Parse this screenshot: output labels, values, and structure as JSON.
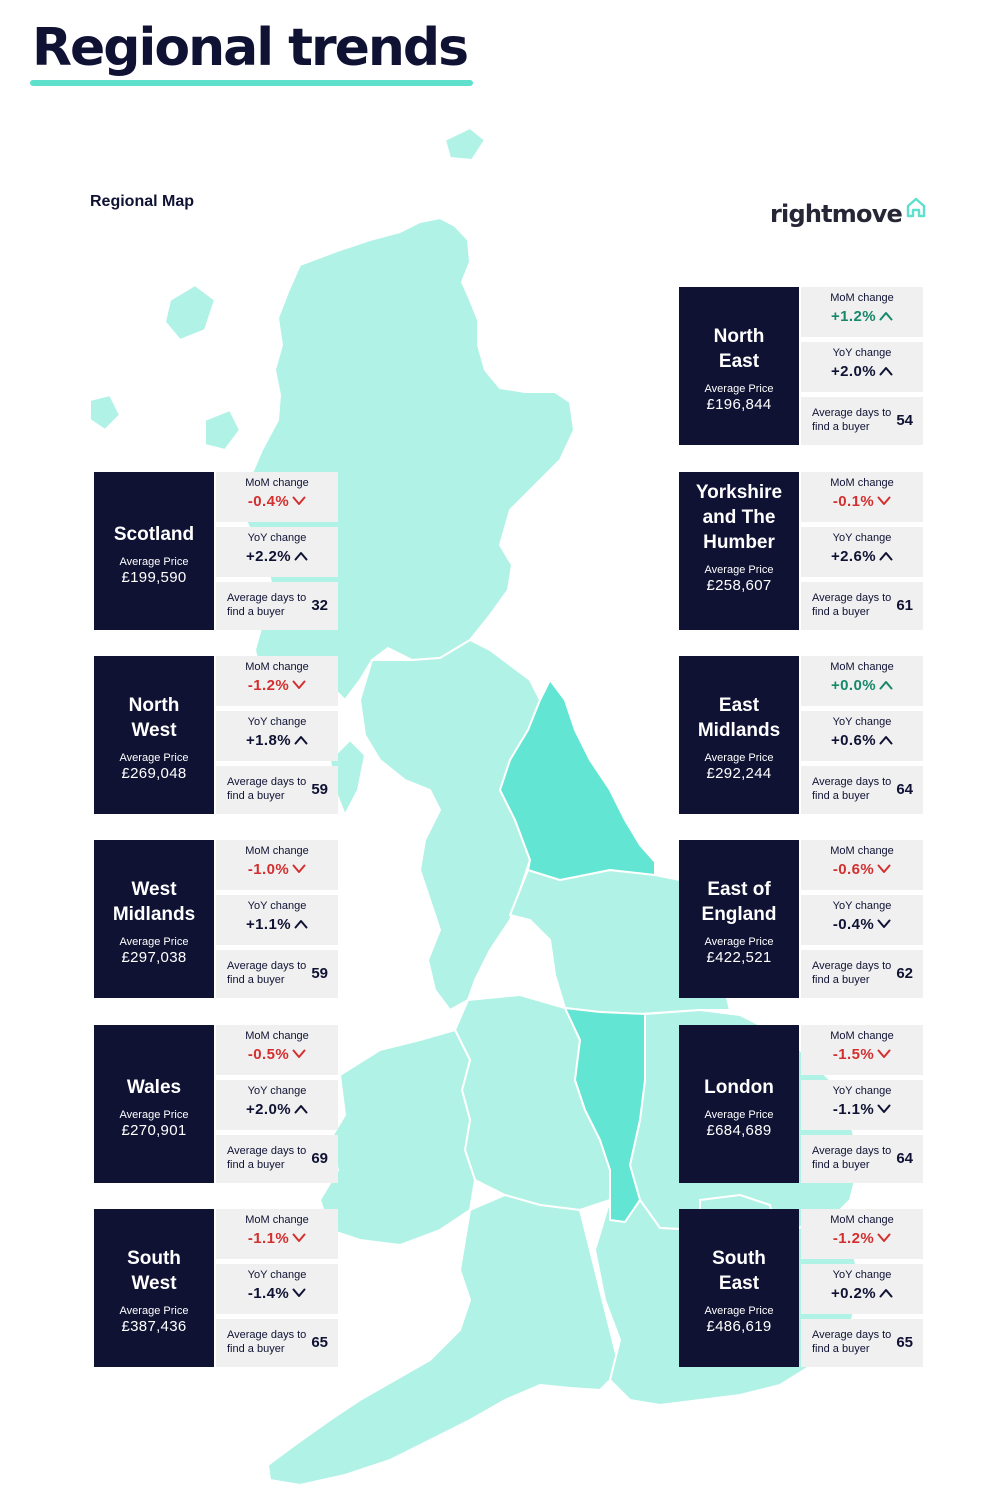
{
  "header": {
    "title": "Regional trends"
  },
  "map": {
    "label": "Regional Map"
  },
  "brand": {
    "name": "rightmove",
    "icon": "house-outline-icon",
    "accent": "#5ee0cc"
  },
  "colors": {
    "navy": "#0f1233",
    "map_land": "#b0f2e6",
    "map_highlight": "#62e5d2",
    "increase": "#17886a",
    "decrease": "#d32f2f",
    "neutral": "#0f1233"
  },
  "labels": {
    "mom": "MoM change",
    "yoy": "YoY change",
    "price": "Average Price",
    "days": "Average days to find a buyer"
  },
  "regions": [
    {
      "name": "North\nEast",
      "price": "£196,844",
      "mom": "+1.2%",
      "mom_dir": "up",
      "mom_color": "increase",
      "yoy": "+2.0%",
      "yoy_dir": "up",
      "days": "54"
    },
    {
      "name": "Scotland",
      "price": "£199,590",
      "mom": "-0.4%",
      "mom_dir": "down",
      "mom_color": "decrease",
      "yoy": "+2.2%",
      "yoy_dir": "up",
      "days": "32"
    },
    {
      "name": "Yorkshire\nand The\nHumber",
      "price": "£258,607",
      "mom": "-0.1%",
      "mom_dir": "down",
      "mom_color": "decrease",
      "yoy": "+2.6%",
      "yoy_dir": "up",
      "days": "61"
    },
    {
      "name": "North\nWest",
      "price": "£269,048",
      "mom": "-1.2%",
      "mom_dir": "down",
      "mom_color": "decrease",
      "yoy": "+1.8%",
      "yoy_dir": "up",
      "days": "59"
    },
    {
      "name": "East\nMidlands",
      "price": "£292,244",
      "mom": "+0.0%",
      "mom_dir": "up",
      "mom_color": "increase",
      "yoy": "+0.6%",
      "yoy_dir": "up",
      "days": "64"
    },
    {
      "name": "West\nMidlands",
      "price": "£297,038",
      "mom": "-1.0%",
      "mom_dir": "down",
      "mom_color": "decrease",
      "yoy": "+1.1%",
      "yoy_dir": "up",
      "days": "59"
    },
    {
      "name": "East of\nEngland",
      "price": "£422,521",
      "mom": "-0.6%",
      "mom_dir": "down",
      "mom_color": "decrease",
      "yoy": "-0.4%",
      "yoy_dir": "down",
      "days": "62"
    },
    {
      "name": "Wales",
      "price": "£270,901",
      "mom": "-0.5%",
      "mom_dir": "down",
      "mom_color": "decrease",
      "yoy": "+2.0%",
      "yoy_dir": "up",
      "days": "69"
    },
    {
      "name": "London",
      "price": "£684,689",
      "mom": "-1.5%",
      "mom_dir": "down",
      "mom_color": "decrease",
      "yoy": "-1.1%",
      "yoy_dir": "down",
      "days": "64"
    },
    {
      "name": "South\nWest",
      "price": "£387,436",
      "mom": "-1.1%",
      "mom_dir": "down",
      "mom_color": "decrease",
      "yoy": "-1.4%",
      "yoy_dir": "down",
      "days": "65"
    },
    {
      "name": "South\nEast",
      "price": "£486,619",
      "mom": "-1.2%",
      "mom_dir": "down",
      "mom_color": "decrease",
      "yoy": "+0.2%",
      "yoy_dir": "up",
      "days": "65"
    }
  ]
}
